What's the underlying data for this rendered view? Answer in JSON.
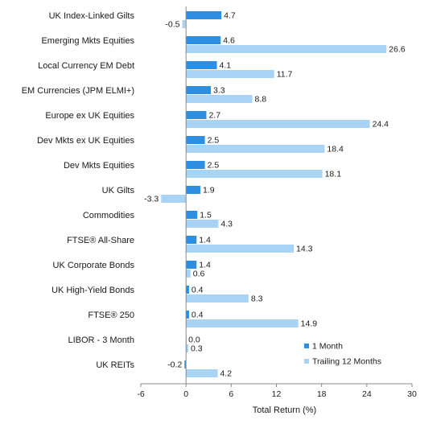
{
  "chart_data": {
    "type": "bar",
    "orientation": "horizontal",
    "categories": [
      "UK Index-Linked Gilts",
      "Emerging Mkts Equities",
      "Local Currency EM Debt",
      "EM Currencies (JPM ELMI+)",
      "Europe ex UK Equities",
      "Dev Mkts ex UK Equities",
      "Dev Mkts Equities",
      "UK Gilts",
      "Commodities",
      "FTSE® All-Share",
      "UK Corporate Bonds",
      "UK High-Yield Bonds",
      "FTSE® 250",
      "LIBOR - 3 Month",
      "UK REITs"
    ],
    "series": [
      {
        "name": "1 Month",
        "color": "#2e8ee0",
        "values": [
          4.7,
          4.6,
          4.1,
          3.3,
          2.7,
          2.5,
          2.5,
          1.9,
          1.5,
          1.4,
          1.4,
          0.4,
          0.4,
          0.0,
          -0.2
        ],
        "labels": [
          "4.7",
          "4.6",
          "4.1",
          "3.3",
          "2.7",
          "2.5",
          "2.5",
          "1.9",
          "1.5",
          "1.4",
          "1.4",
          "0.4",
          "0.4",
          "0.0",
          "-0.2"
        ]
      },
      {
        "name": "Trailing 12 Months",
        "color": "#a8d3f5",
        "values": [
          -0.5,
          26.6,
          11.7,
          8.8,
          24.4,
          18.4,
          18.1,
          -3.3,
          4.3,
          14.3,
          0.6,
          8.3,
          14.9,
          0.3,
          4.2
        ],
        "labels": [
          "-0.5",
          "26.6",
          "11.7",
          "8.8",
          "24.4",
          "18.4",
          "18.1",
          "-3.3",
          "4.3",
          "14.3",
          "0.6",
          "8.3",
          "14.9",
          "0.3",
          "4.2"
        ]
      }
    ],
    "xlabel": "Total Return (%)",
    "xlim": [
      -6,
      30
    ],
    "xticks": [
      -6,
      0,
      6,
      12,
      18,
      24,
      30
    ],
    "xtick_labels": [
      "-6",
      "0",
      "6",
      "12",
      "18",
      "24",
      "30"
    ],
    "grid": false,
    "legend": {
      "placement": "bottom-right"
    }
  }
}
